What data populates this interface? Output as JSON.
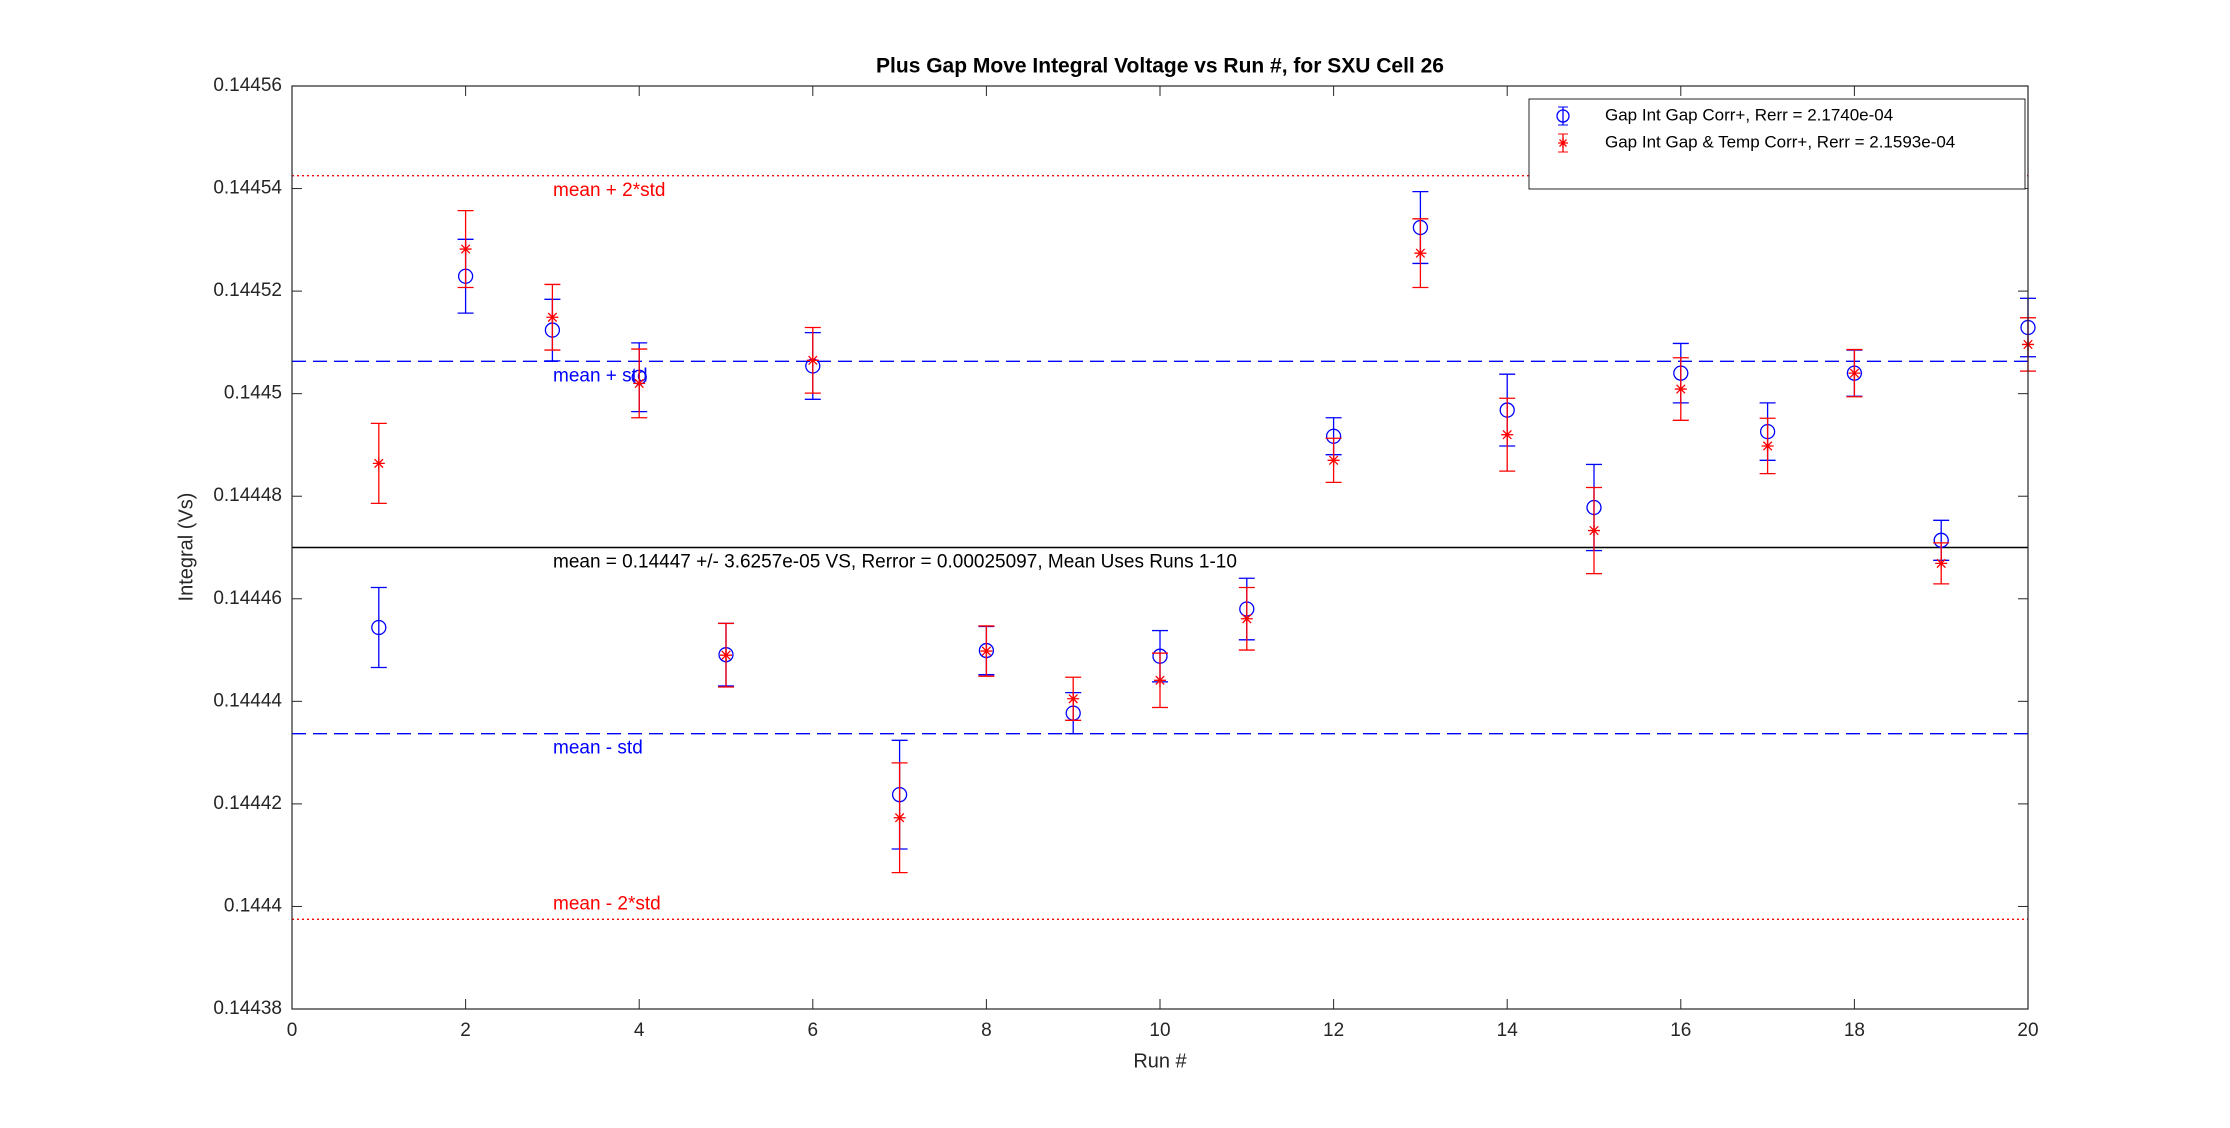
{
  "chart_data": {
    "type": "errorbar",
    "title": "Plus Gap Move Integral Voltage vs Run #, for SXU Cell 26",
    "x_label": "Run #",
    "y_label": "Integral (Vs)",
    "xlim": [
      0,
      20
    ],
    "xticks": [
      0,
      2,
      4,
      6,
      8,
      10,
      12,
      14,
      16,
      18,
      20
    ],
    "ylim": [
      0.14438,
      0.14456
    ],
    "yticks": [
      0.14438,
      0.1444,
      0.14442,
      0.14444,
      0.14446,
      0.14448,
      0.1445,
      0.14452,
      0.14454,
      0.14456
    ],
    "legend": "upper right",
    "x": [
      1,
      2,
      3,
      4,
      5,
      6,
      7,
      8,
      9,
      10,
      11,
      12,
      13,
      14,
      15,
      16,
      17,
      18,
      19,
      20
    ],
    "series": [
      {
        "name": "Gap Int Gap Corr+, Rerr = 2.1740e-04",
        "color": "#0000ff",
        "marker": "circle",
        "values": [
          0.1444544,
          0.1445229,
          0.1445124,
          0.1445032,
          0.1444491,
          0.1445054,
          0.1444218,
          0.1444499,
          0.1444377,
          0.1444488,
          0.144458,
          0.1444917,
          0.1445324,
          0.1444968,
          0.1444778,
          0.144504,
          0.1444926,
          0.144504,
          0.1444714,
          0.1445129
        ],
        "errors": [
          7.8e-06,
          7.2e-06,
          6e-06,
          6.7e-06,
          6.1e-06,
          6.5e-06,
          1.06e-05,
          4.7e-06,
          4e-06,
          5e-06,
          6e-06,
          3.6e-06,
          7e-06,
          7e-06,
          8.4e-06,
          5.8e-06,
          5.6e-06,
          4.5e-06,
          3.9e-06,
          5.7e-06
        ]
      },
      {
        "name": "Gap Int Gap & Temp  Corr+, Rerr = 2.1593e-04",
        "color": "#ff0000",
        "marker": "star",
        "values": [
          0.1444864,
          0.1445282,
          0.1445149,
          0.144502,
          0.144449,
          0.1445065,
          0.1444173,
          0.1444498,
          0.1444405,
          0.1444441,
          0.1444561,
          0.144487,
          0.1445274,
          0.144492,
          0.1444733,
          0.1445009,
          0.1444898,
          0.144504,
          0.1444669,
          0.1445096
        ],
        "errors": [
          7.8e-06,
          7.5e-06,
          6.4e-06,
          6.7e-06,
          6.2e-06,
          6.4e-06,
          1.07e-05,
          4.9e-06,
          4.2e-06,
          5.3e-06,
          6.1e-06,
          4.3e-06,
          6.7e-06,
          7.1e-06,
          8.4e-06,
          6.1e-06,
          5.4e-06,
          4.6e-06,
          4e-06,
          5.2e-06
        ]
      }
    ],
    "reference_lines": [
      {
        "label": "mean + 2*std",
        "value": 0.1445425,
        "color": "#ff0000",
        "style": "dotted"
      },
      {
        "label": "mean + std",
        "value": 0.1445063,
        "color": "#0000ff",
        "style": "dashed"
      },
      {
        "label": "mean = 0.14447 +/- 3.6257e-05 VS, Rerror = 0.00025097, Mean Uses Runs 1-10",
        "value": 0.14447,
        "color": "#000000",
        "style": "solid"
      },
      {
        "label": "mean - std",
        "value": 0.1444337,
        "color": "#0000ff",
        "style": "dashed"
      },
      {
        "label": "mean - 2*std",
        "value": 0.1443975,
        "color": "#ff0000",
        "style": "dotted"
      }
    ]
  }
}
